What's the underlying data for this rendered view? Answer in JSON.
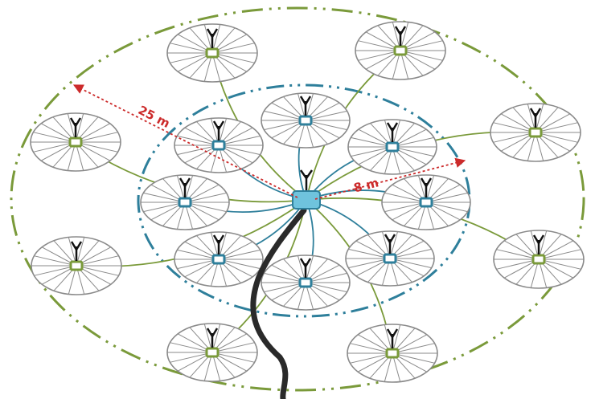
{
  "labels": {
    "outer_radius": "25 m",
    "inner_radius": "8 m"
  },
  "colors": {
    "outer": "#7a9a3a",
    "inner": "#2e7f9b",
    "hub": "#6fc3dd",
    "measure": "#cc2b2b",
    "cable": "#2a2a2a",
    "spokes": "#8a8a8a"
  },
  "hub": {
    "group": "hub"
  },
  "nodes": [
    {
      "group": "inner"
    },
    {
      "group": "inner"
    },
    {
      "group": "inner"
    },
    {
      "group": "inner"
    },
    {
      "group": "inner"
    },
    {
      "group": "inner"
    },
    {
      "group": "inner"
    },
    {
      "group": "inner"
    },
    {
      "group": "outer"
    },
    {
      "group": "outer"
    },
    {
      "group": "outer"
    },
    {
      "group": "outer"
    },
    {
      "group": "outer"
    },
    {
      "group": "outer"
    },
    {
      "group": "outer"
    },
    {
      "group": "outer"
    }
  ]
}
